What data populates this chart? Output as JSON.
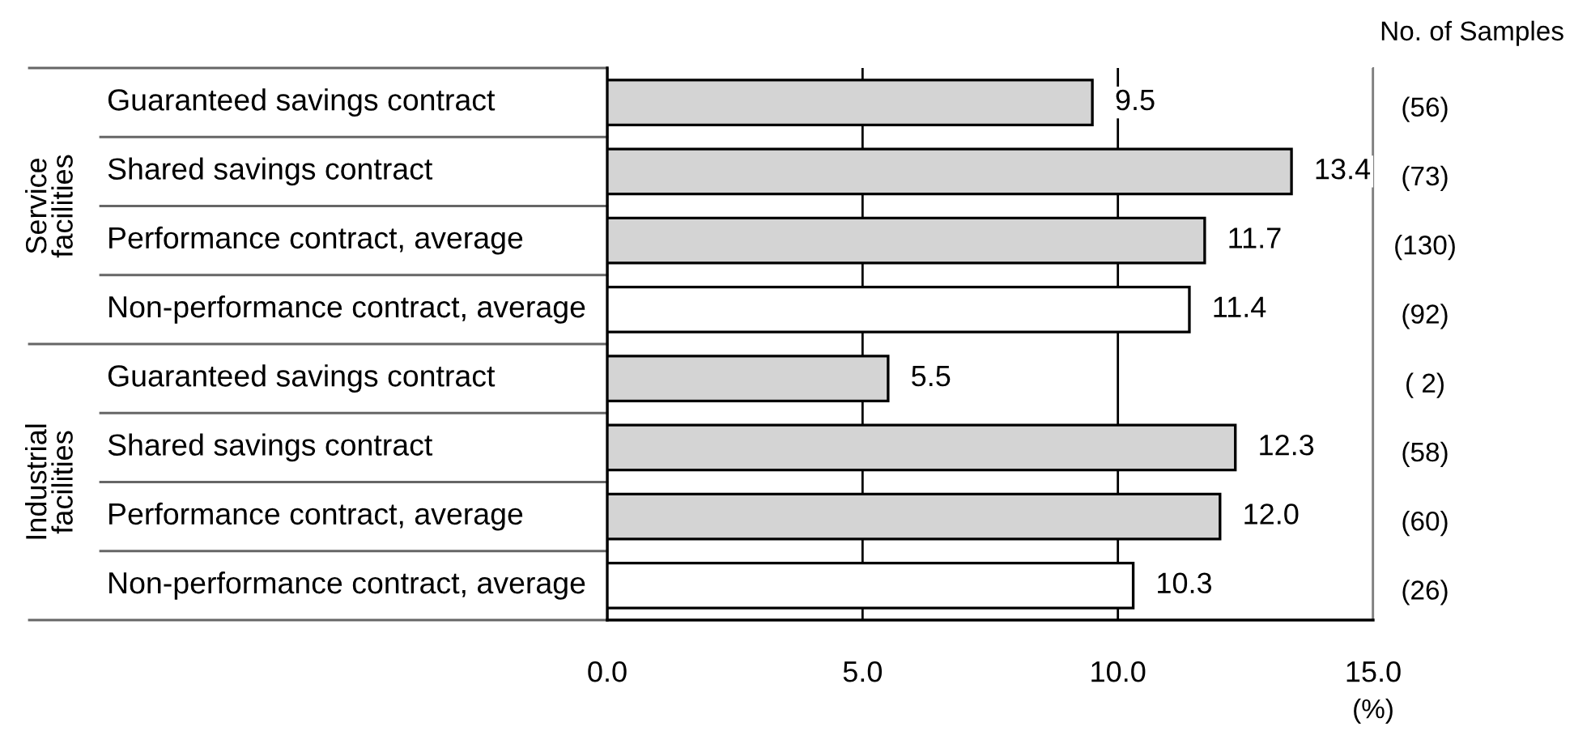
{
  "chart_data": {
    "type": "bar",
    "orientation": "horizontal",
    "categories": [
      "Guaranteed savings contract",
      "Shared savings contract",
      "Performance contract, average",
      "Non-performance contract, average",
      "Guaranteed savings contract",
      "Shared savings contract",
      "Performance contract, average",
      "Non-performance contract, average"
    ],
    "values": [
      9.5,
      13.4,
      11.7,
      11.4,
      5.5,
      12.3,
      12.0,
      10.3
    ],
    "colors": [
      "#d4d4d4",
      "#d4d4d4",
      "#d4d4d4",
      "#ffffff",
      "#d4d4d4",
      "#d4d4d4",
      "#d4d4d4",
      "#ffffff"
    ],
    "value_labels": [
      "9.5",
      "13.4",
      "11.7",
      "11.4",
      "5.5",
      "12.3",
      "12.0",
      "10.3"
    ],
    "xlim": [
      0,
      15
    ],
    "xticks": [
      {
        "value": 0,
        "label": "0.0"
      },
      {
        "value": 5,
        "label": "5.0"
      },
      {
        "value": 10,
        "label": "10.0"
      },
      {
        "value": 15,
        "label": "15.0"
      }
    ],
    "xlabel": "(%)",
    "grid": "x",
    "annotations": [
      "No. of Samples",
      "(56)",
      "(73)",
      "(130)",
      "(92)",
      "( 2)",
      "(58)",
      "(60)",
      "(26)",
      "Service\nfacilities",
      "Industrial\nfacilities"
    ]
  }
}
